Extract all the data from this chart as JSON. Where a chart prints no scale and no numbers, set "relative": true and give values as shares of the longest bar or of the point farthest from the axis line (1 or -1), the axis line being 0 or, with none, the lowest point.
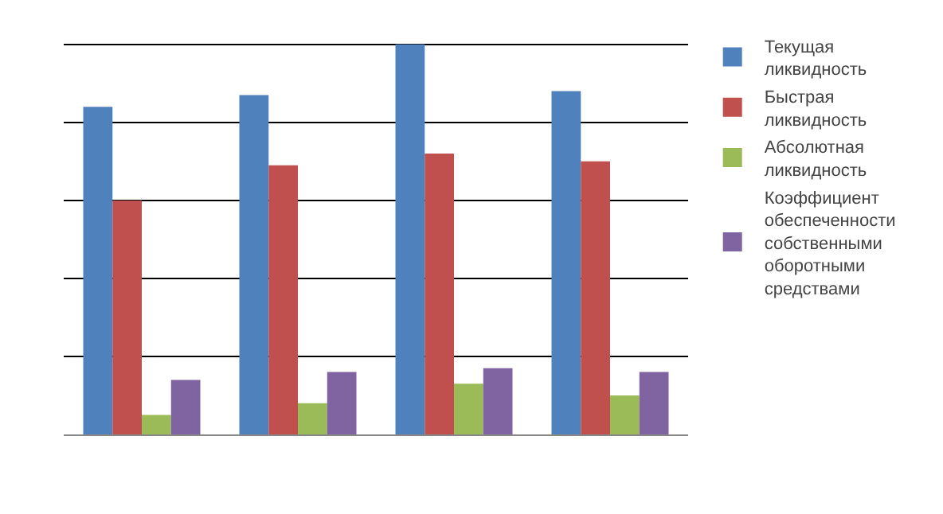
{
  "chart_data": {
    "type": "bar",
    "relative": true,
    "categories": [
      null,
      null,
      null,
      null
    ],
    "grid": "y",
    "legend": "right",
    "series": [
      {
        "name": "Текущая ликвидность",
        "color": "#4f81bd",
        "values": [
          0.84,
          0.87,
          1,
          0.88
        ]
      },
      {
        "name": "Быстрая ликвидность",
        "color": "#c0504d",
        "values": [
          0.6,
          0.69,
          0.72,
          0.7
        ]
      },
      {
        "name": "Абсолютная ликвидность",
        "color": "#9bbb59",
        "values": [
          0.05,
          0.08,
          0.13,
          0.1
        ]
      },
      {
        "name": "Коэффициент обеспеченности собственными оборотными средствами",
        "color": "#8064a2",
        "values": [
          0.14,
          0.16,
          0.17,
          0.16
        ]
      }
    ]
  }
}
